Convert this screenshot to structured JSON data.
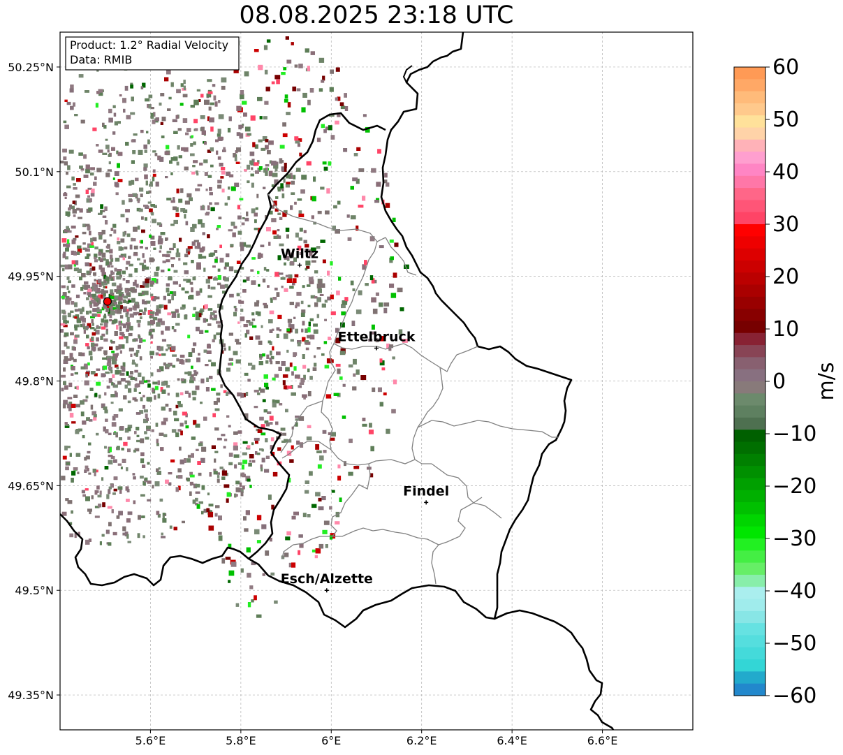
{
  "title": "08.08.2025 23:18 UTC",
  "info_box": {
    "line1": "Product: 1.2° Radial Velocity",
    "line2": "Data: RMIB"
  },
  "map": {
    "lon_range": [
      5.4,
      6.8
    ],
    "lat_range": [
      49.3,
      50.3
    ],
    "lon_ticks": [
      "5.6°E",
      "5.8°E",
      "6°E",
      "6.2°E",
      "6.4°E",
      "6.6°E"
    ],
    "lat_ticks": [
      "50.25°N",
      "50.1°N",
      "49.95°N",
      "49.8°N",
      "49.65°N",
      "49.5°N",
      "49.35°N"
    ],
    "radar_site": {
      "lon": 5.505,
      "lat": 49.914
    },
    "cities": [
      {
        "name": "Wiltz",
        "lon": 5.93,
        "lat": 49.966
      },
      {
        "name": "Ettelbruck",
        "lon": 6.1,
        "lat": 49.847
      },
      {
        "name": "Findel",
        "lon": 6.21,
        "lat": 49.626
      },
      {
        "name": "Esch/Alzette",
        "lon": 5.99,
        "lat": 49.5
      }
    ]
  },
  "colorbar": {
    "label": "m/s",
    "range": [
      -60,
      60
    ],
    "ticks": [
      "60",
      "50",
      "40",
      "30",
      "20",
      "10",
      "0",
      "−10",
      "−20",
      "−30",
      "−40",
      "−50",
      "−60"
    ],
    "colors_top_to_bottom": [
      "#ff9a55",
      "#ffa866",
      "#ffbb7a",
      "#ffc98c",
      "#ffe19a",
      "#ffd3a8",
      "#ffb2b8",
      "#ff9fcf",
      "#ff85c4",
      "#ff77a8",
      "#ff6688",
      "#ff5577",
      "#ff4466",
      "#ff0000",
      "#ee0000",
      "#dd0000",
      "#cc0000",
      "#bb0000",
      "#aa0000",
      "#990000",
      "#880000",
      "#770000",
      "#882233",
      "#884455",
      "#886070",
      "#887080",
      "#887a7a",
      "#6c8a6c",
      "#5e8060",
      "#4e7050",
      "#006000",
      "#006f00",
      "#008000",
      "#009000",
      "#00a000",
      "#00b000",
      "#00c000",
      "#00d500",
      "#00e600",
      "#22f022",
      "#44ee44",
      "#66ee66",
      "#88eeaa",
      "#aaeeee",
      "#a0ecec",
      "#88e6e6",
      "#66e2e2",
      "#55dede",
      "#44dada",
      "#33d6d6",
      "#22aacc",
      "#2288cc"
    ]
  }
}
